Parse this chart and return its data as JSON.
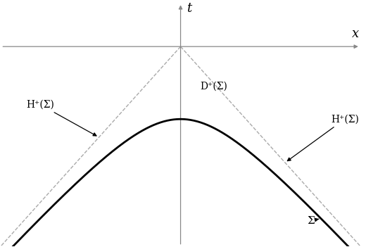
{
  "xlabel": "x",
  "ylabel": "t",
  "xlim": [
    -5.5,
    5.5
  ],
  "ylim": [
    -5.5,
    1.2
  ],
  "t_axis_top": 1.2,
  "t_axis_bottom": -5.5,
  "x_axis_y": 0,
  "dashed_color": "#aaaaaa",
  "curve_color": "#000000",
  "axis_color": "#888888",
  "label_D": "D⁺(Σ)",
  "label_H_left": "H⁺(Σ)",
  "label_H_right": "H⁺(Σ)",
  "label_Sigma": "Σ",
  "curve_C": 0.0,
  "curve_r": 2.0,
  "curve_xmax": 5.2
}
